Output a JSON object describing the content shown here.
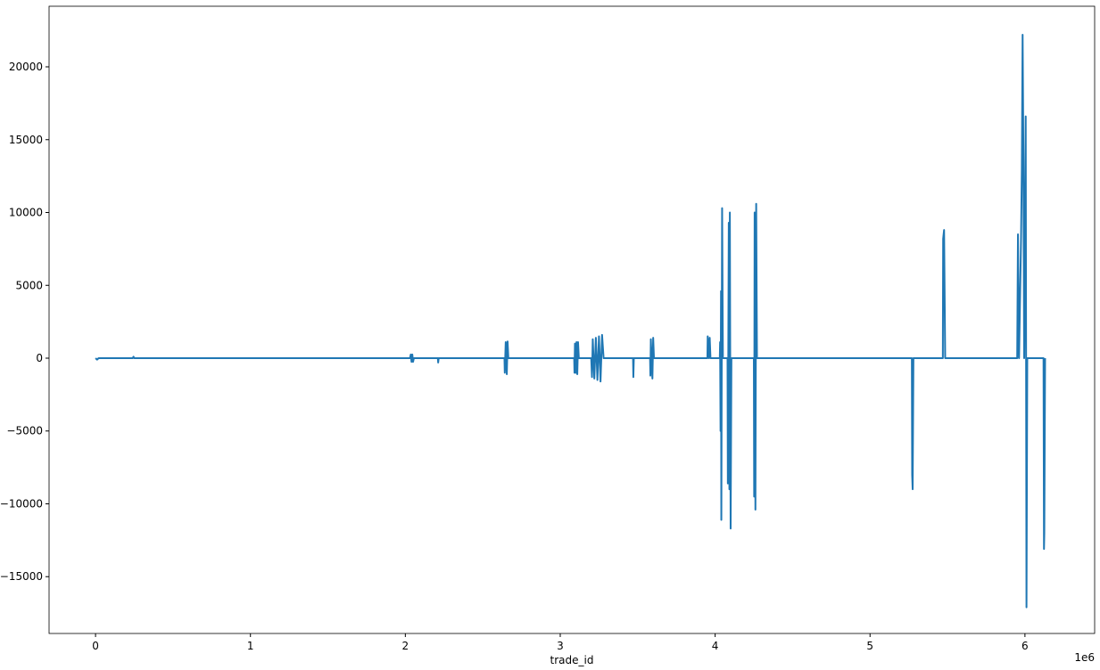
{
  "chart_data": {
    "type": "line",
    "x_label": "trade_id",
    "x_offset_label": "1e6",
    "xlim": [
      -300000,
      6450000
    ],
    "xticks": [
      {
        "value": 0,
        "label": "0"
      },
      {
        "value": 1000000,
        "label": "1"
      },
      {
        "value": 2000000,
        "label": "2"
      },
      {
        "value": 3000000,
        "label": "3"
      },
      {
        "value": 4000000,
        "label": "4"
      },
      {
        "value": 5000000,
        "label": "5"
      },
      {
        "value": 6000000,
        "label": "6"
      }
    ],
    "ylim": [
      -18900,
      24160
    ],
    "yticks": [
      {
        "value": -15000,
        "label": "−15000"
      },
      {
        "value": -10000,
        "label": "−10000"
      },
      {
        "value": -5000,
        "label": "−5000"
      },
      0,
      5000,
      10000,
      15000,
      20000
    ],
    "grid": false,
    "color": "#1f77b4",
    "x": [
      0,
      10000,
      20000,
      240000,
      245000,
      250000,
      2030000,
      2035000,
      2040000,
      2045000,
      2050000,
      2055000,
      2210000,
      2212000,
      2215000,
      2640000,
      2642000,
      2648000,
      2655000,
      2660000,
      2665000,
      3090000,
      3092000,
      3095000,
      3100000,
      3105000,
      3110000,
      3115000,
      3120000,
      3200000,
      3205000,
      3210000,
      3220000,
      3230000,
      3240000,
      3250000,
      3260000,
      3270000,
      3280000,
      3470000,
      3472000,
      3475000,
      3580000,
      3582000,
      3585000,
      3595000,
      3600000,
      3605000,
      3950000,
      3952000,
      3960000,
      3965000,
      3970000,
      4030000,
      4032000,
      4035000,
      4038000,
      4040000,
      4045000,
      4050000,
      4080000,
      4082000,
      4088000,
      4092000,
      4095000,
      4100000,
      4105000,
      4250000,
      4252000,
      4255000,
      4260000,
      4265000,
      4270000,
      5270000,
      5272000,
      5275000,
      5280000,
      5470000,
      5472000,
      5478000,
      5485000,
      5950000,
      5955000,
      5962000,
      5975000,
      5980000,
      5985000,
      5990000,
      5995000,
      6005000,
      6010000,
      6015000,
      6120000,
      6123000,
      6125000,
      6130000
    ],
    "values": [
      0,
      -100,
      0,
      0,
      100,
      0,
      0,
      250,
      -250,
      250,
      -250,
      0,
      0,
      -300,
      0,
      0,
      -1000,
      1100,
      -1100,
      1150,
      0,
      0,
      -1000,
      1000,
      -1000,
      1100,
      -1100,
      1100,
      0,
      0,
      -1300,
      1300,
      -1400,
      1400,
      -1500,
      1500,
      -1600,
      1600,
      0,
      0,
      -1300,
      0,
      0,
      -1200,
      1300,
      -1400,
      1400,
      0,
      0,
      1500,
      0,
      1400,
      0,
      0,
      1100,
      -5000,
      4600,
      -11100,
      10300,
      0,
      0,
      -8600,
      9300,
      -9000,
      10000,
      -11700,
      0,
      0,
      -9500,
      10000,
      -10400,
      10600,
      0,
      0,
      -8000,
      -9000,
      0,
      0,
      8200,
      8800,
      0,
      0,
      8500,
      0,
      8300,
      13000,
      22200,
      13800,
      0,
      16600,
      -17100,
      0,
      0,
      -13100,
      -12000,
      0
    ]
  }
}
